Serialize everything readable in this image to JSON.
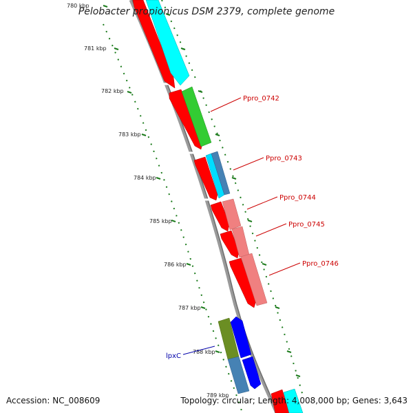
{
  "title": "Pelobacter propionicus DSM 2379, complete genome",
  "footer": {
    "accession": "Accession: NC_008609",
    "summary": "Topology: circular; Length: 4,008,000 bp; Genes: 3,643"
  },
  "colors": {
    "backbone": "#888888",
    "ticks": "#1a7a1a",
    "forward_cds": "#ff0000",
    "reverse_cds_cyan": "#00ffff",
    "reverse_cds_green": "#33cc33",
    "reverse_cds_pink": "#f08080",
    "reverse_cds_blue": "#0000ff",
    "reverse_cds_olive": "#6b8e23",
    "reverse_cds_steel": "#4682b4",
    "label_red": "#cc0000",
    "label_blue": "#0000aa"
  },
  "tick_labels": [
    "780 kbp",
    "781 kbp",
    "782 kbp",
    "783 kbp",
    "784 kbp",
    "785 kbp",
    "786 kbp",
    "787 kbp",
    "788 kbp",
    "789 kbp"
  ],
  "gene_labels": [
    {
      "text": "Ppro_0742",
      "color": "label_red"
    },
    {
      "text": "Ppro_0743",
      "color": "label_red"
    },
    {
      "text": "Ppro_0744",
      "color": "label_red"
    },
    {
      "text": "Ppro_0745",
      "color": "label_red"
    },
    {
      "text": "Ppro_0746",
      "color": "label_red"
    },
    {
      "text": "lpxC",
      "color": "label_blue"
    }
  ]
}
